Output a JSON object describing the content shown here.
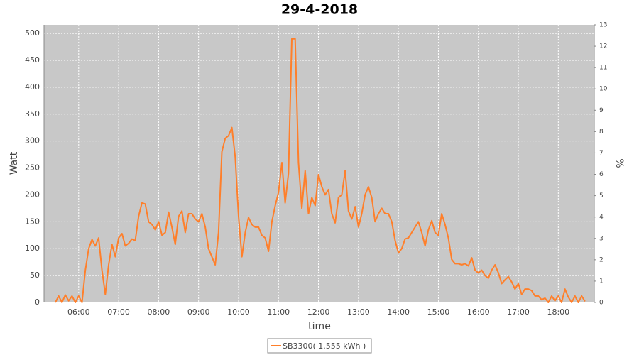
{
  "chart_data": {
    "type": "line",
    "title": "29-4-2018",
    "xlabel": "time",
    "ylabel": "Watt",
    "y2label": "%",
    "x": [
      "05:25",
      "05:30",
      "05:35",
      "05:40",
      "05:45",
      "05:50",
      "05:55",
      "06:00",
      "06:05",
      "06:10",
      "06:15",
      "06:20",
      "06:25",
      "06:30",
      "06:35",
      "06:40",
      "06:45",
      "06:50",
      "06:55",
      "07:00",
      "07:05",
      "07:10",
      "07:15",
      "07:20",
      "07:25",
      "07:30",
      "07:35",
      "07:40",
      "07:45",
      "07:50",
      "07:55",
      "08:00",
      "08:05",
      "08:10",
      "08:15",
      "08:20",
      "08:25",
      "08:30",
      "08:35",
      "08:40",
      "08:45",
      "08:50",
      "08:55",
      "09:00",
      "09:05",
      "09:10",
      "09:15",
      "09:20",
      "09:25",
      "09:30",
      "09:35",
      "09:40",
      "09:45",
      "09:50",
      "09:55",
      "10:00",
      "10:05",
      "10:10",
      "10:15",
      "10:20",
      "10:25",
      "10:30",
      "10:35",
      "10:40",
      "10:45",
      "10:50",
      "10:55",
      "11:00",
      "11:05",
      "11:10",
      "11:15",
      "11:20",
      "11:25",
      "11:30",
      "11:35",
      "11:40",
      "11:45",
      "11:50",
      "11:55",
      "12:00",
      "12:05",
      "12:10",
      "12:15",
      "12:20",
      "12:25",
      "12:30",
      "12:35",
      "12:40",
      "12:45",
      "12:50",
      "12:55",
      "13:00",
      "13:05",
      "13:10",
      "13:15",
      "13:20",
      "13:25",
      "13:30",
      "13:35",
      "13:40",
      "13:45",
      "13:50",
      "13:55",
      "14:00",
      "14:05",
      "14:10",
      "14:15",
      "14:20",
      "14:25",
      "14:30",
      "14:35",
      "14:40",
      "14:45",
      "14:50",
      "14:55",
      "15:00",
      "15:05",
      "15:10",
      "15:15",
      "15:20",
      "15:25",
      "15:30",
      "15:35",
      "15:40",
      "15:45",
      "15:50",
      "15:55",
      "16:00",
      "16:05",
      "16:10",
      "16:15",
      "16:20",
      "16:25",
      "16:30",
      "16:35",
      "16:40",
      "16:45",
      "16:50",
      "16:55",
      "17:00",
      "17:05",
      "17:10",
      "17:15",
      "17:20",
      "17:25",
      "17:30",
      "17:35",
      "17:40",
      "17:45",
      "17:50",
      "17:55",
      "18:00",
      "18:05",
      "18:10",
      "18:15",
      "18:20",
      "18:25",
      "18:30",
      "18:35",
      "18:40"
    ],
    "series": [
      {
        "name": "SB3300( 1.555 kWh )",
        "color": "#ff7f2a",
        "values": [
          0,
          12,
          0,
          14,
          3,
          12,
          0,
          12,
          0,
          60,
          100,
          117,
          105,
          120,
          60,
          15,
          70,
          108,
          85,
          120,
          128,
          105,
          110,
          118,
          115,
          160,
          185,
          183,
          150,
          145,
          135,
          150,
          125,
          130,
          168,
          140,
          108,
          160,
          170,
          130,
          165,
          165,
          155,
          150,
          165,
          140,
          100,
          85,
          70,
          130,
          280,
          305,
          310,
          325,
          270,
          160,
          85,
          130,
          158,
          145,
          140,
          140,
          125,
          120,
          95,
          150,
          180,
          205,
          260,
          185,
          240,
          490,
          490,
          260,
          175,
          245,
          165,
          195,
          180,
          238,
          215,
          200,
          210,
          165,
          148,
          195,
          200,
          245,
          170,
          155,
          178,
          140,
          165,
          200,
          215,
          195,
          150,
          165,
          175,
          165,
          165,
          150,
          115,
          92,
          100,
          118,
          120,
          130,
          140,
          150,
          130,
          105,
          135,
          152,
          130,
          125,
          165,
          145,
          120,
          80,
          72,
          72,
          70,
          72,
          68,
          83,
          60,
          55,
          60,
          50,
          45,
          60,
          70,
          55,
          35,
          42,
          48,
          38,
          25,
          35,
          15,
          25,
          25,
          22,
          12,
          12,
          5,
          8,
          0,
          12,
          3,
          12,
          0,
          25,
          10,
          0,
          12,
          0,
          12,
          2
        ]
      }
    ],
    "xlim": [
      "05:08",
      "18:54"
    ],
    "xticks": [
      "06:00",
      "07:00",
      "08:00",
      "09:00",
      "10:00",
      "11:00",
      "12:00",
      "13:00",
      "14:00",
      "15:00",
      "16:00",
      "17:00",
      "18:00"
    ],
    "ylim": [
      0,
      516
    ],
    "yticks": [
      0,
      50,
      100,
      150,
      200,
      250,
      300,
      350,
      400,
      450,
      500
    ],
    "y2lim": [
      0,
      13
    ],
    "y2ticks": [
      0,
      1,
      2,
      3,
      4,
      5,
      6,
      7,
      8,
      9,
      10,
      11,
      12,
      13
    ],
    "grid": true
  }
}
